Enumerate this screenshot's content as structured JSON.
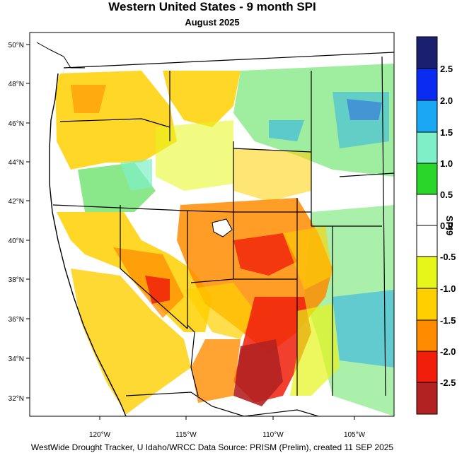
{
  "title": "Western United States - 9 month SPI",
  "subtitle": "August 2025",
  "footer": "WestWide Drought Tracker, U Idaho/WRCC Data Source: PRISM (Prelim), created 11 SEP 2025",
  "lat_ticks": [
    "50°N",
    "48°N",
    "46°N",
    "44°N",
    "42°N",
    "40°N",
    "38°N",
    "36°N",
    "34°N",
    "32°N"
  ],
  "lon_ticks": [
    "120°W",
    "115°W",
    "110°W",
    "105°W"
  ],
  "colorbar": {
    "label": "SPI9",
    "tick_labels": [
      "2.5",
      "2.0",
      "1.5",
      "1.0",
      "0.5",
      "0.0",
      "-0.5",
      "-1.0",
      "-1.5",
      "-2.0",
      "-2.5"
    ],
    "colors": [
      "#1a1f6e",
      "#0a2bf0",
      "#1aa8f5",
      "#7fefc8",
      "#2ad62a",
      "#ffffff",
      "#ffffff",
      "#e6f51a",
      "#ffd000",
      "#ff8c00",
      "#f01e0a",
      "#b22222"
    ]
  }
}
